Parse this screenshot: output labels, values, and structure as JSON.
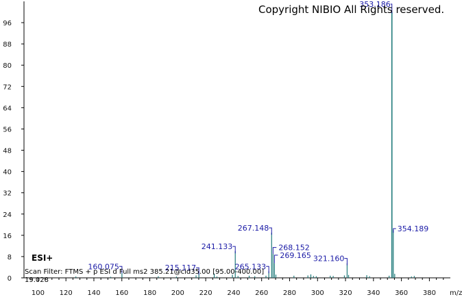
{
  "copyright": "Copyright NIBIO All Rights reserved.",
  "ion_mode": "ESI+",
  "scan_filter": "Scan Filter: FTMS + p ESI d Full ms2 385.21@cid35.00 [95.00-400.00]",
  "retention_time": "19.028",
  "colors": {
    "peaks": "#1f7a7a",
    "labels": "#1a1aa6",
    "axis": "#000000"
  },
  "chart_data": {
    "type": "bar",
    "title": "",
    "xlabel": "m/z",
    "ylabel": "",
    "xlim": [
      90,
      395
    ],
    "ylim": [
      0,
      104
    ],
    "x_ticks": [
      100,
      120,
      140,
      160,
      180,
      200,
      220,
      240,
      260,
      280,
      300,
      320,
      340,
      360,
      380
    ],
    "y_ticks": [
      0,
      8,
      16,
      24,
      32,
      40,
      48,
      56,
      64,
      72,
      80,
      88,
      96
    ],
    "grid": false,
    "peaks": [
      {
        "mz": 160.075,
        "intensity": 2.5,
        "label": "160.075"
      },
      {
        "mz": 215.117,
        "intensity": 2.0,
        "label": "215.117"
      },
      {
        "mz": 241.133,
        "intensity": 10.0,
        "label": "241.133"
      },
      {
        "mz": 265.133,
        "intensity": 2.5,
        "label": "265.133"
      },
      {
        "mz": 267.148,
        "intensity": 17.0,
        "label": "267.148"
      },
      {
        "mz": 268.152,
        "intensity": 9.0,
        "label": "268.152"
      },
      {
        "mz": 269.165,
        "intensity": 5.5,
        "label": "269.165"
      },
      {
        "mz": 321.16,
        "intensity": 5.5,
        "label": "321.160"
      },
      {
        "mz": 353.186,
        "intensity": 100.0,
        "label": "353.186"
      },
      {
        "mz": 354.189,
        "intensity": 18.0,
        "label": "354.189"
      },
      {
        "mz": 127.1,
        "intensity": 0.5
      },
      {
        "mz": 152.0,
        "intensity": 0.4
      },
      {
        "mz": 186.1,
        "intensity": 0.6
      },
      {
        "mz": 199.1,
        "intensity": 0.5
      },
      {
        "mz": 213.1,
        "intensity": 0.9
      },
      {
        "mz": 226.1,
        "intensity": 1.6
      },
      {
        "mz": 228.0,
        "intensity": 0.5
      },
      {
        "mz": 239.1,
        "intensity": 1.2
      },
      {
        "mz": 243.1,
        "intensity": 0.7
      },
      {
        "mz": 251.1,
        "intensity": 0.8
      },
      {
        "mz": 255.1,
        "intensity": 0.6
      },
      {
        "mz": 263.1,
        "intensity": 0.8
      },
      {
        "mz": 270.2,
        "intensity": 1.2
      },
      {
        "mz": 283.1,
        "intensity": 0.8
      },
      {
        "mz": 293.1,
        "intensity": 0.9
      },
      {
        "mz": 295.2,
        "intensity": 1.3
      },
      {
        "mz": 297.1,
        "intensity": 0.7
      },
      {
        "mz": 299.1,
        "intensity": 0.6
      },
      {
        "mz": 309.1,
        "intensity": 0.8
      },
      {
        "mz": 311.2,
        "intensity": 0.7
      },
      {
        "mz": 319.2,
        "intensity": 0.9
      },
      {
        "mz": 322.2,
        "intensity": 1.1
      },
      {
        "mz": 335.2,
        "intensity": 1.0
      },
      {
        "mz": 337.2,
        "intensity": 0.6
      },
      {
        "mz": 351.2,
        "intensity": 0.8
      },
      {
        "mz": 355.2,
        "intensity": 1.5
      },
      {
        "mz": 367.2,
        "intensity": 0.5
      },
      {
        "mz": 369.2,
        "intensity": 0.7
      }
    ]
  }
}
